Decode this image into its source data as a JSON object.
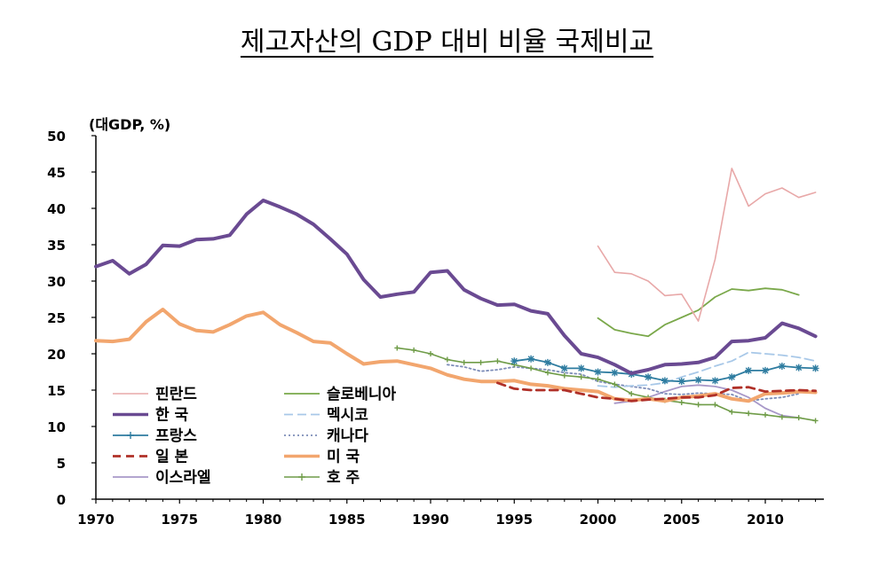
{
  "chart_data": {
    "type": "line",
    "title": "제고자산의 GDP 대비 비율 국제비교",
    "ylabel": "(대GDP, %)",
    "xlabel": "",
    "xlim": [
      1970,
      2013.5
    ],
    "ylim": [
      0,
      50
    ],
    "xticks": [
      1970,
      1975,
      1980,
      1985,
      1990,
      1995,
      2000,
      2005,
      2010
    ],
    "yticks": [
      0,
      5,
      10,
      15,
      20,
      25,
      30,
      35,
      40,
      45,
      50
    ],
    "grid": false,
    "legend_position": "bottom-left",
    "series": [
      {
        "name": "핀란드",
        "color": "#e8a8a8",
        "style": "solid",
        "width": 1.6,
        "marker": "none",
        "x": [
          2000,
          2001,
          2002,
          2003,
          2004,
          2005,
          2006,
          2007,
          2008,
          2009,
          2010,
          2011,
          2012,
          2013
        ],
        "y": [
          34.8,
          31.2,
          31.0,
          30.0,
          28.0,
          28.2,
          24.5,
          33.0,
          45.5,
          40.3,
          42.0,
          42.8,
          41.5,
          42.2
        ]
      },
      {
        "name": "한 국",
        "color": "#6a4a92",
        "style": "solid",
        "width": 4,
        "marker": "none",
        "x": [
          1970,
          1971,
          1972,
          1973,
          1974,
          1975,
          1976,
          1977,
          1978,
          1979,
          1980,
          1981,
          1982,
          1983,
          1984,
          1985,
          1986,
          1987,
          1988,
          1989,
          1990,
          1991,
          1992,
          1993,
          1994,
          1995,
          1996,
          1997,
          1998,
          1999,
          2000,
          2001,
          2002,
          2003,
          2004,
          2005,
          2006,
          2007,
          2008,
          2009,
          2010,
          2011,
          2012,
          2013
        ],
        "y": [
          32.0,
          32.8,
          31.0,
          32.3,
          34.9,
          34.8,
          35.7,
          35.8,
          36.3,
          39.2,
          41.1,
          40.2,
          39.2,
          37.8,
          35.8,
          33.7,
          30.2,
          27.8,
          28.2,
          28.5,
          31.2,
          31.4,
          28.8,
          27.6,
          26.7,
          26.8,
          25.9,
          25.5,
          22.5,
          20.0,
          19.5,
          18.5,
          17.3,
          17.8,
          18.5,
          18.6,
          18.8,
          19.5,
          21.7,
          21.8,
          22.2,
          24.2,
          23.5,
          22.4
        ]
      },
      {
        "name": "프랑스",
        "color": "#2e7ca0",
        "style": "solid",
        "width": 1.8,
        "marker": "star",
        "x": [
          1995,
          1996,
          1997,
          1998,
          1999,
          2000,
          2001,
          2002,
          2003,
          2004,
          2005,
          2006,
          2007,
          2008,
          2009,
          2010,
          2011,
          2012,
          2013
        ],
        "y": [
          19.0,
          19.3,
          18.8,
          18.0,
          18.0,
          17.5,
          17.4,
          17.2,
          16.8,
          16.3,
          16.2,
          16.4,
          16.3,
          16.8,
          17.7,
          17.7,
          18.3,
          18.1,
          18.0
        ]
      },
      {
        "name": "일 본",
        "color": "#b03028",
        "style": "dashed",
        "width": 2.8,
        "marker": "none",
        "x": [
          1994,
          1995,
          1996,
          1997,
          1998,
          1999,
          2000,
          2001,
          2002,
          2003,
          2004,
          2005,
          2006,
          2007,
          2008,
          2009,
          2010,
          2011,
          2012,
          2013
        ],
        "y": [
          16.0,
          15.2,
          15.0,
          15.0,
          15.0,
          14.5,
          14.0,
          13.8,
          13.5,
          13.7,
          13.8,
          14.0,
          14.0,
          14.3,
          15.3,
          15.4,
          14.8,
          14.9,
          15.0,
          14.9
        ]
      },
      {
        "name": "이스라엘",
        "color": "#a898c8",
        "style": "solid",
        "width": 1.8,
        "marker": "none",
        "x": [
          2001,
          2002,
          2003,
          2004,
          2005,
          2006,
          2007,
          2008,
          2009,
          2010,
          2011,
          2012
        ],
        "y": [
          13.2,
          13.5,
          14.0,
          14.8,
          15.5,
          15.7,
          15.5,
          15.0,
          14.0,
          12.5,
          11.5,
          11.2
        ]
      },
      {
        "name": "슬로베니아",
        "color": "#7aa84a",
        "style": "solid",
        "width": 1.8,
        "marker": "none",
        "x": [
          2000,
          2001,
          2002,
          2003,
          2004,
          2005,
          2006,
          2007,
          2008,
          2009,
          2010,
          2011,
          2012
        ],
        "y": [
          24.9,
          23.3,
          22.8,
          22.4,
          24.0,
          25.0,
          26.0,
          27.8,
          28.9,
          28.7,
          29.0,
          28.8,
          28.1
        ]
      },
      {
        "name": "멕시코",
        "color": "#a8c8e8",
        "style": "dashed",
        "width": 1.8,
        "marker": "none",
        "x": [
          2000,
          2001,
          2002,
          2003,
          2004,
          2005,
          2006,
          2007,
          2008,
          2009,
          2010,
          2011,
          2012,
          2013
        ],
        "y": [
          15.6,
          15.4,
          15.6,
          15.7,
          16.0,
          16.8,
          17.5,
          18.3,
          19.0,
          20.2,
          20.0,
          19.8,
          19.5,
          19.0
        ]
      },
      {
        "name": "캐나다",
        "color": "#7d8db8",
        "style": "dotted",
        "width": 1.8,
        "marker": "none",
        "x": [
          1991,
          1992,
          1993,
          1994,
          1995,
          1996,
          1997,
          1998,
          1999,
          2000,
          2001,
          2002,
          2003,
          2004,
          2005,
          2006,
          2007,
          2008,
          2009,
          2010,
          2011,
          2012
        ],
        "y": [
          18.5,
          18.2,
          17.6,
          17.8,
          18.2,
          18.0,
          17.8,
          17.4,
          17.2,
          16.2,
          15.8,
          15.5,
          15.2,
          14.5,
          14.4,
          14.6,
          14.5,
          14.4,
          13.5,
          13.8,
          14.0,
          14.5
        ]
      },
      {
        "name": "미 국",
        "color": "#f2a66e",
        "style": "solid",
        "width": 4,
        "marker": "none",
        "x": [
          1970,
          1971,
          1972,
          1973,
          1974,
          1975,
          1976,
          1977,
          1978,
          1979,
          1980,
          1981,
          1982,
          1983,
          1984,
          1985,
          1986,
          1987,
          1988,
          1989,
          1990,
          1991,
          1992,
          1993,
          1994,
          1995,
          1996,
          1997,
          1998,
          1999,
          2000,
          2001,
          2002,
          2003,
          2004,
          2005,
          2006,
          2007,
          2008,
          2009,
          2010,
          2011,
          2012,
          2013
        ],
        "y": [
          21.8,
          21.7,
          22.0,
          24.4,
          26.1,
          24.1,
          23.2,
          23.0,
          24.0,
          25.2,
          25.7,
          24.0,
          22.9,
          21.7,
          21.5,
          20.0,
          18.6,
          18.9,
          19.0,
          18.5,
          18.0,
          17.1,
          16.5,
          16.2,
          16.2,
          16.3,
          15.8,
          15.6,
          15.2,
          15.0,
          14.8,
          13.8,
          13.6,
          13.8,
          13.5,
          14.0,
          14.2,
          14.5,
          13.8,
          13.5,
          14.5,
          14.6,
          14.8,
          14.7
        ]
      },
      {
        "name": "호 주",
        "color": "#6f9c48",
        "style": "solid",
        "width": 1.6,
        "marker": "plus",
        "x": [
          1988,
          1989,
          1990,
          1991,
          1992,
          1993,
          1994,
          1995,
          1996,
          1997,
          1998,
          1999,
          2000,
          2001,
          2002,
          2003,
          2004,
          2005,
          2006,
          2007,
          2008,
          2009,
          2010,
          2011,
          2012,
          2013
        ],
        "y": [
          20.8,
          20.5,
          20.0,
          19.2,
          18.8,
          18.8,
          19.0,
          18.5,
          18.0,
          17.4,
          17.0,
          16.8,
          16.5,
          15.8,
          14.5,
          14.0,
          13.6,
          13.3,
          13.0,
          13.0,
          12.0,
          11.8,
          11.6,
          11.3,
          11.2,
          10.8
        ]
      }
    ],
    "legend_columns": [
      [
        "핀란드",
        "한 국",
        "프랑스",
        "일 본",
        "이스라엘"
      ],
      [
        "슬로베니아",
        "멕시코",
        "캐나다",
        "미 국",
        "호 주"
      ]
    ]
  }
}
